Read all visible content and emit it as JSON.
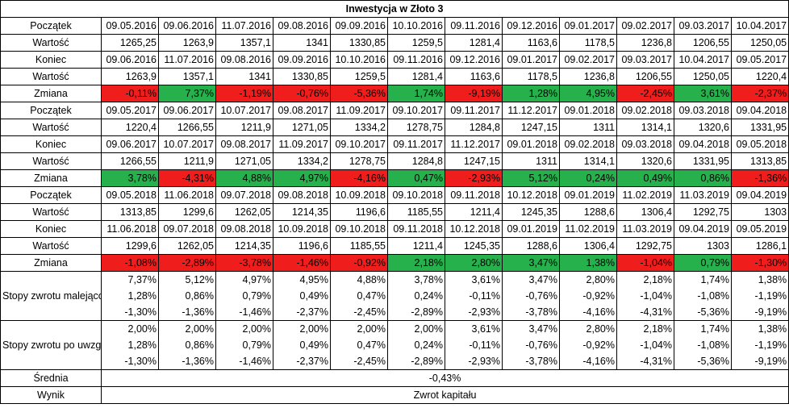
{
  "title": "Inwestycja w Złoto 3",
  "labels": {
    "start": "Początek",
    "value": "Wartość",
    "end": "Koniec",
    "change": "Zmiana",
    "sorted": "Stopy zwrotu malejąco",
    "replaced": "Stopy zwrotu po uwzględnieniu stopy zastąpienia",
    "mean": "Średnia",
    "result": "Wynik"
  },
  "blocks": [
    {
      "start": [
        "09.05.2016",
        "09.06.2016",
        "11.07.2016",
        "09.08.2016",
        "09.09.2016",
        "10.10.2016",
        "09.11.2016",
        "09.12.2016",
        "09.01.2017",
        "09.02.2017",
        "09.03.2017",
        "10.04.2017"
      ],
      "start_value": [
        "1265,25",
        "1263,9",
        "1357,1",
        "1341",
        "1330,85",
        "1259,5",
        "1281,4",
        "1163,6",
        "1178,5",
        "1236,8",
        "1206,55",
        "1250,05"
      ],
      "end": [
        "09.06.2016",
        "11.07.2016",
        "09.08.2016",
        "09.09.2016",
        "10.10.2016",
        "09.11.2016",
        "09.12.2016",
        "09.01.2017",
        "09.02.2017",
        "09.03.2017",
        "10.04.2017",
        "09.05.2017"
      ],
      "end_value": [
        "1263,9",
        "1357,1",
        "1341",
        "1330,85",
        "1259,5",
        "1281,4",
        "1163,6",
        "1178,5",
        "1236,8",
        "1206,55",
        "1250,05",
        "1220,4"
      ],
      "change": [
        "-0,11%",
        "7,37%",
        "-1,19%",
        "-0,76%",
        "-5,36%",
        "1,74%",
        "-9,19%",
        "1,28%",
        "4,95%",
        "-2,45%",
        "3,61%",
        "-2,37%"
      ]
    },
    {
      "start": [
        "09.05.2017",
        "09.06.2017",
        "10.07.2017",
        "09.08.2017",
        "11.09.2017",
        "09.10.2017",
        "09.11.2017",
        "11.12.2017",
        "09.01.2018",
        "09.02.2018",
        "09.03.2018",
        "09.04.2018"
      ],
      "start_value": [
        "1220,4",
        "1266,55",
        "1211,9",
        "1271,05",
        "1334,2",
        "1278,75",
        "1284,8",
        "1247,15",
        "1311",
        "1314,1",
        "1320,6",
        "1331,95"
      ],
      "end": [
        "09.06.2017",
        "10.07.2017",
        "09.08.2017",
        "11.09.2017",
        "09.10.2017",
        "09.11.2017",
        "11.12.2017",
        "09.01.2018",
        "09.02.2018",
        "09.03.2018",
        "09.04.2018",
        "09.05.2018"
      ],
      "end_value": [
        "1266,55",
        "1211,9",
        "1271,05",
        "1334,2",
        "1278,75",
        "1284,8",
        "1247,15",
        "1311",
        "1314,1",
        "1320,6",
        "1331,95",
        "1313,85"
      ],
      "change": [
        "3,78%",
        "-4,31%",
        "4,88%",
        "4,97%",
        "-4,16%",
        "0,47%",
        "-2,93%",
        "5,12%",
        "0,24%",
        "0,49%",
        "0,86%",
        "-1,36%"
      ]
    },
    {
      "start": [
        "09.05.2018",
        "11.06.2018",
        "09.07.2018",
        "09.08.2018",
        "10.09.2018",
        "09.10.2018",
        "09.11.2018",
        "10.12.2018",
        "09.01.2019",
        "11.02.2019",
        "11.03.2019",
        "09.04.2019"
      ],
      "start_value": [
        "1313,85",
        "1299,6",
        "1262,05",
        "1214,35",
        "1196,6",
        "1185,55",
        "1211,4",
        "1245,35",
        "1288,6",
        "1306,4",
        "1292,75",
        "1303"
      ],
      "end": [
        "11.06.2018",
        "09.07.2018",
        "09.08.2018",
        "10.09.2018",
        "09.10.2018",
        "09.11.2018",
        "10.12.2018",
        "09.01.2019",
        "11.02.2019",
        "11.03.2019",
        "09.04.2019",
        "09.05.2019"
      ],
      "end_value": [
        "1299,6",
        "1262,05",
        "1214,35",
        "1196,6",
        "1185,55",
        "1211,4",
        "1245,35",
        "1288,6",
        "1306,4",
        "1292,75",
        "1303",
        "1286,1"
      ],
      "change": [
        "-1,08%",
        "-2,89%",
        "-3,78%",
        "-1,46%",
        "-0,92%",
        "2,18%",
        "2,80%",
        "3,47%",
        "1,38%",
        "-1,04%",
        "0,79%",
        "-1,30%"
      ]
    }
  ],
  "sorted_rows": [
    [
      "7,37%",
      "5,12%",
      "4,97%",
      "4,95%",
      "4,88%",
      "3,78%",
      "3,61%",
      "3,47%",
      "2,80%",
      "2,18%",
      "1,74%",
      "1,38%"
    ],
    [
      "1,28%",
      "0,86%",
      "0,79%",
      "0,49%",
      "0,47%",
      "0,24%",
      "-0,11%",
      "-0,76%",
      "-0,92%",
      "-1,04%",
      "-1,08%",
      "-1,19%"
    ],
    [
      "-1,30%",
      "-1,36%",
      "-1,46%",
      "-2,37%",
      "-2,45%",
      "-2,89%",
      "-2,93%",
      "-3,78%",
      "-4,16%",
      "-4,31%",
      "-5,36%",
      "-9,19%"
    ]
  ],
  "replaced_rows": [
    [
      "2,00%",
      "2,00%",
      "2,00%",
      "2,00%",
      "2,00%",
      "2,00%",
      "3,61%",
      "3,47%",
      "2,80%",
      "2,18%",
      "1,74%",
      "1,38%"
    ],
    [
      "1,28%",
      "0,86%",
      "0,79%",
      "0,49%",
      "0,47%",
      "0,24%",
      "-0,11%",
      "-0,76%",
      "-0,92%",
      "-1,04%",
      "-1,08%",
      "-1,19%"
    ],
    [
      "-1,30%",
      "-1,36%",
      "-1,46%",
      "-2,37%",
      "-2,45%",
      "-2,89%",
      "-2,93%",
      "-3,78%",
      "-4,16%",
      "-4,31%",
      "-5,36%",
      "-9,19%"
    ]
  ],
  "mean_value": "-0,43%",
  "result_value": "Zwrot kapitału",
  "colors": {
    "positive": "#26b14c",
    "negative": "#f01d1d"
  }
}
